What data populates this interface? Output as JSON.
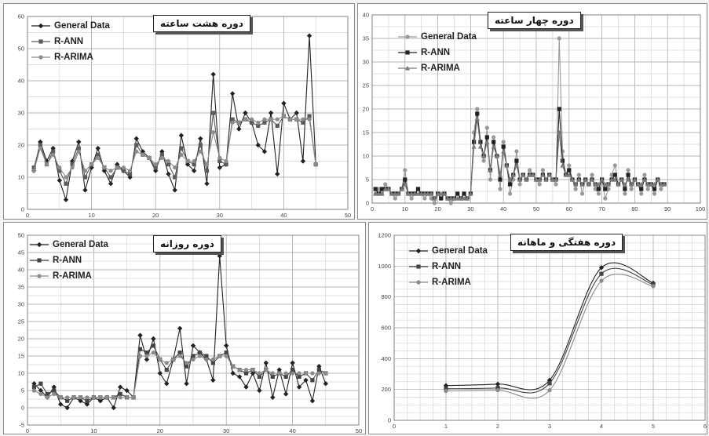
{
  "charts": [
    {
      "id": "eight-hour",
      "title": "دوره هشت ساعته",
      "legend": [
        "General Data",
        "R-ANN",
        "R-ARIMA"
      ],
      "chart_data": {
        "type": "line",
        "xlim": [
          0,
          50
        ],
        "ylim": [
          0,
          60
        ],
        "xticks": [
          0,
          10,
          20,
          30,
          40,
          50
        ],
        "yticks": [
          0,
          10,
          20,
          30,
          40,
          50,
          60
        ],
        "grid": true,
        "legend_placement": "top-left",
        "x": [
          1,
          2,
          3,
          4,
          5,
          6,
          7,
          8,
          9,
          10,
          11,
          12,
          13,
          14,
          15,
          16,
          17,
          18,
          19,
          20,
          21,
          22,
          23,
          24,
          25,
          26,
          27,
          28,
          29,
          30,
          31,
          32,
          33,
          34,
          35,
          36,
          37,
          38,
          39,
          40,
          41,
          42,
          43,
          44,
          45
        ],
        "series": [
          {
            "name": "General Data",
            "color": "#222222",
            "marker": "diamond",
            "values": [
              12,
              21,
              15,
              19,
              9,
              3,
              15,
              21,
              6,
              13,
              19,
              12,
              8,
              14,
              12,
              10,
              22,
              18,
              16,
              12,
              18,
              11,
              6,
              23,
              14,
              12,
              22,
              8,
              42,
              13,
              14,
              36,
              25,
              30,
              27,
              20,
              18,
              30,
              11,
              33,
              28,
              30,
              15,
              54,
              14
            ]
          },
          {
            "name": "R-ANN",
            "color": "#5a5a5a",
            "marker": "square",
            "values": [
              13,
              20,
              14,
              18,
              12,
              8,
              14,
              19,
              10,
              14,
              17,
              13,
              10,
              13,
              12,
              11,
              20,
              17,
              16,
              13,
              17,
              14,
              10,
              19,
              15,
              14,
              20,
              12,
              30,
              15,
              14,
              28,
              27,
              28,
              27,
              26,
              27,
              28,
              26,
              29,
              28,
              28,
              27,
              29,
              14
            ]
          },
          {
            "name": "R-ARIMA",
            "color": "#8c8c8c",
            "marker": "circle",
            "values": [
              12,
              19,
              14,
              17,
              13,
              10,
              13,
              18,
              12,
              14,
              16,
              13,
              12,
              13,
              13,
              12,
              18,
              17,
              16,
              14,
              16,
              15,
              13,
              17,
              15,
              15,
              18,
              14,
              24,
              16,
              15,
              27,
              27,
              28,
              28,
              27,
              28,
              28,
              28,
              29,
              28,
              28,
              28,
              28,
              14
            ]
          }
        ]
      }
    },
    {
      "id": "four-hour",
      "title": "دوره چهار ساعته",
      "legend": [
        "General Data",
        "R-ANN",
        "R-ARIMA"
      ],
      "chart_data": {
        "type": "line",
        "xlim": [
          0,
          100
        ],
        "ylim": [
          0,
          40
        ],
        "xticks": [
          0,
          10,
          20,
          30,
          40,
          50,
          60,
          70,
          80,
          90,
          100
        ],
        "yticks": [
          0,
          5,
          10,
          15,
          20,
          25,
          30,
          35,
          40
        ],
        "grid": true,
        "legend_placement": "top-left",
        "x": [
          1,
          2,
          3,
          4,
          5,
          6,
          7,
          8,
          9,
          10,
          11,
          12,
          13,
          14,
          15,
          16,
          17,
          18,
          19,
          20,
          21,
          22,
          23,
          24,
          25,
          26,
          27,
          28,
          29,
          30,
          31,
          32,
          33,
          34,
          35,
          36,
          37,
          38,
          39,
          40,
          41,
          42,
          43,
          44,
          45,
          46,
          47,
          48,
          49,
          50,
          51,
          52,
          53,
          54,
          55,
          56,
          57,
          58,
          59,
          60,
          61,
          62,
          63,
          64,
          65,
          66,
          67,
          68,
          69,
          70,
          71,
          72,
          73,
          74,
          75,
          76,
          77,
          78,
          79,
          80,
          81,
          82,
          83,
          84,
          85,
          86,
          87,
          88,
          89
        ],
        "series": [
          {
            "name": "General Data",
            "color": "#999999",
            "marker": "circle",
            "values": [
              2,
              3,
              2,
              4,
              3,
              2,
              1,
              2,
              3,
              7,
              2,
              1,
              2,
              3,
              2,
              1,
              2,
              1,
              0,
              2,
              1,
              2,
              1,
              0,
              1,
              2,
              1,
              2,
              1,
              2,
              15,
              20,
              13,
              9,
              16,
              5,
              14,
              10,
              3,
              13,
              8,
              2,
              5,
              11,
              4,
              6,
              5,
              7,
              6,
              5,
              4,
              7,
              5,
              6,
              5,
              4,
              35,
              11,
              6,
              8,
              5,
              3,
              6,
              2,
              5,
              4,
              6,
              3,
              2,
              5,
              1,
              3,
              6,
              8,
              4,
              5,
              2,
              7,
              3,
              5,
              4,
              2,
              6,
              3,
              4,
              2,
              5,
              3,
              4
            ]
          },
          {
            "name": "R-ANN",
            "color": "#222222",
            "marker": "square",
            "values": [
              3,
              2,
              3,
              3,
              3,
              2,
              2,
              2,
              3,
              5,
              2,
              2,
              2,
              3,
              2,
              2,
              2,
              2,
              1,
              2,
              1,
              2,
              1,
              1,
              1,
              2,
              1,
              2,
              1,
              2,
              13,
              19,
              13,
              10,
              14,
              7,
              13,
              10,
              5,
              12,
              8,
              4,
              6,
              9,
              5,
              6,
              5,
              6,
              6,
              5,
              5,
              6,
              5,
              6,
              5,
              5,
              20,
              9,
              6,
              7,
              5,
              4,
              5,
              4,
              5,
              4,
              5,
              4,
              3,
              5,
              3,
              4,
              5,
              6,
              4,
              5,
              3,
              6,
              4,
              5,
              4,
              3,
              5,
              4,
              4,
              3,
              5,
              4,
              4
            ]
          },
          {
            "name": "R-ARIMA",
            "color": "#7a7a7a",
            "marker": "triangle",
            "values": [
              2,
              2,
              2,
              3,
              3,
              2,
              2,
              2,
              3,
              4,
              2,
              2,
              2,
              2,
              2,
              2,
              2,
              2,
              1,
              2,
              2,
              2,
              1,
              1,
              1,
              1,
              1,
              1,
              1,
              2,
              12,
              18,
              12,
              10,
              13,
              7,
              12,
              10,
              6,
              11,
              8,
              5,
              6,
              8,
              5,
              6,
              5,
              6,
              6,
              5,
              5,
              6,
              5,
              6,
              5,
              5,
              15,
              8,
              6,
              6,
              5,
              4,
              5,
              4,
              5,
              4,
              5,
              4,
              4,
              5,
              4,
              4,
              5,
              5,
              4,
              5,
              4,
              5,
              4,
              5,
              4,
              4,
              5,
              4,
              4,
              4,
              5,
              4,
              4
            ]
          }
        ]
      }
    },
    {
      "id": "daily",
      "title": "دوره روزانه",
      "legend": [
        "General Data",
        "R-ANN",
        "R-ARIMA"
      ],
      "chart_data": {
        "type": "line",
        "xlim": [
          0,
          50
        ],
        "ylim": [
          -5,
          50
        ],
        "xticks": [
          0,
          10,
          20,
          30,
          40,
          50
        ],
        "yticks": [
          -5,
          0,
          5,
          10,
          15,
          20,
          25,
          30,
          35,
          40,
          45,
          50
        ],
        "grid": true,
        "legend_placement": "top-left",
        "x": [
          1,
          2,
          3,
          4,
          5,
          6,
          7,
          8,
          9,
          10,
          11,
          12,
          13,
          14,
          15,
          16,
          17,
          18,
          19,
          20,
          21,
          22,
          23,
          24,
          25,
          26,
          27,
          28,
          29,
          30,
          31,
          32,
          33,
          34,
          35,
          36,
          37,
          38,
          39,
          40,
          41,
          42,
          43,
          44,
          45
        ],
        "series": [
          {
            "name": "General Data",
            "color": "#222222",
            "marker": "diamond",
            "values": [
              7,
              5,
              3,
              6,
              1,
              0,
              3,
              2,
              1,
              3,
              2,
              3,
              0,
              6,
              5,
              3,
              21,
              14,
              20,
              10,
              7,
              14,
              23,
              7,
              18,
              16,
              14,
              8,
              44,
              18,
              10,
              9,
              6,
              10,
              5,
              13,
              3,
              11,
              4,
              13,
              6,
              8,
              2,
              12,
              7
            ]
          },
          {
            "name": "R-ANN",
            "color": "#444444",
            "marker": "square",
            "values": [
              6,
              7,
              4,
              5,
              3,
              2,
              3,
              3,
              2,
              3,
              3,
              3,
              3,
              4,
              3,
              3,
              17,
              16,
              18,
              14,
              11,
              14,
              16,
              12,
              15,
              16,
              15,
              13,
              15,
              16,
              12,
              11,
              10,
              11,
              9,
              11,
              9,
              10,
              9,
              11,
              9,
              10,
              8,
              11,
              10
            ]
          },
          {
            "name": "R-ARIMA",
            "color": "#8a8a8a",
            "marker": "circle",
            "values": [
              5,
              4,
              3,
              4,
              3,
              3,
              3,
              3,
              3,
              3,
              3,
              3,
              3,
              3,
              3,
              3,
              15,
              15,
              16,
              14,
              13,
              14,
              15,
              13,
              14,
              15,
              14,
              14,
              15,
              15,
              12,
              11,
              11,
              11,
              10,
              11,
              10,
              10,
              10,
              10,
              10,
              10,
              10,
              10,
              10
            ]
          }
        ]
      }
    },
    {
      "id": "weekly-monthly",
      "title": "دوره هفتگی و ماهانه",
      "legend": [
        "General Data",
        "R-ANN",
        "R-ARIMA"
      ],
      "chart_data": {
        "type": "line",
        "xlim": [
          0,
          6
        ],
        "ylim": [
          0,
          1200
        ],
        "xticks": [
          0,
          1,
          2,
          3,
          4,
          5,
          6
        ],
        "yticks": [
          0,
          200,
          400,
          600,
          800,
          1000,
          1200
        ],
        "grid": true,
        "legend_placement": "top-left",
        "x": [
          1,
          2,
          3,
          4,
          5
        ],
        "series": [
          {
            "name": "General Data",
            "color": "#222222",
            "marker": "diamond",
            "values": [
              225,
              235,
              260,
              990,
              890
            ]
          },
          {
            "name": "R-ANN",
            "color": "#444444",
            "marker": "square",
            "values": [
              205,
              210,
              240,
              950,
              880
            ]
          },
          {
            "name": "R-ARIMA",
            "color": "#8a8a8a",
            "marker": "circle",
            "values": [
              190,
              195,
              195,
              905,
              870
            ]
          }
        ]
      }
    }
  ]
}
